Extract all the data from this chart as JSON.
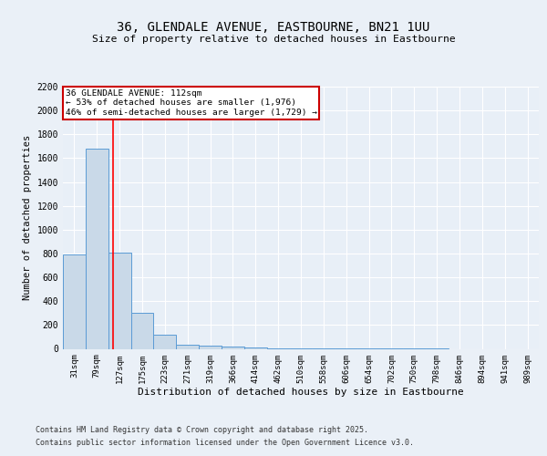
{
  "title": "36, GLENDALE AVENUE, EASTBOURNE, BN21 1UU",
  "subtitle": "Size of property relative to detached houses in Eastbourne",
  "xlabel": "Distribution of detached houses by size in Eastbourne",
  "ylabel": "Number of detached properties",
  "categories": [
    "31sqm",
    "79sqm",
    "127sqm",
    "175sqm",
    "223sqm",
    "271sqm",
    "319sqm",
    "366sqm",
    "414sqm",
    "462sqm",
    "510sqm",
    "558sqm",
    "606sqm",
    "654sqm",
    "702sqm",
    "750sqm",
    "798sqm",
    "846sqm",
    "894sqm",
    "941sqm",
    "989sqm"
  ],
  "values": [
    790,
    1680,
    810,
    300,
    115,
    35,
    30,
    18,
    10,
    5,
    3,
    2,
    2,
    1,
    1,
    1,
    1,
    0,
    0,
    0,
    0
  ],
  "bar_color": "#c9d9e8",
  "bar_edge_color": "#5b9bd5",
  "red_line_x": 1.72,
  "annotation_title": "36 GLENDALE AVENUE: 112sqm",
  "annotation_line2": "← 53% of detached houses are smaller (1,976)",
  "annotation_line3": "46% of semi-detached houses are larger (1,729) →",
  "ylim": [
    0,
    2200
  ],
  "yticks": [
    0,
    200,
    400,
    600,
    800,
    1000,
    1200,
    1400,
    1600,
    1800,
    2000,
    2200
  ],
  "footer_line1": "Contains HM Land Registry data © Crown copyright and database right 2025.",
  "footer_line2": "Contains public sector information licensed under the Open Government Licence v3.0.",
  "bg_color": "#eaf0f7",
  "plot_bg_color": "#e8eff7"
}
